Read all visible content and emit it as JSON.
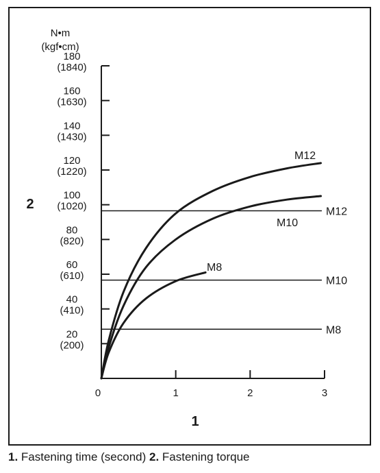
{
  "chart_data": {
    "type": "line",
    "xlabel": "1",
    "ylabel": "2",
    "yunit_top": "N•m",
    "yunit_bottom": "(kgf•cm)",
    "xlim": [
      0,
      3
    ],
    "ylim": [
      0,
      180
    ],
    "x_ticks": [
      {
        "value": 0,
        "label": "0"
      },
      {
        "value": 1,
        "label": "1"
      },
      {
        "value": 2,
        "label": "2"
      },
      {
        "value": 3,
        "label": "3"
      }
    ],
    "y_ticks": [
      {
        "value": 20,
        "label": "20",
        "sublabel": "(200)"
      },
      {
        "value": 40,
        "label": "40",
        "sublabel": "(410)"
      },
      {
        "value": 60,
        "label": "60",
        "sublabel": "(610)"
      },
      {
        "value": 80,
        "label": "80",
        "sublabel": "(820)"
      },
      {
        "value": 100,
        "label": "100",
        "sublabel": "(1020)"
      },
      {
        "value": 120,
        "label": "120",
        "sublabel": "(1220)"
      },
      {
        "value": 140,
        "label": "140",
        "sublabel": "(1430)"
      },
      {
        "value": 160,
        "label": "160",
        "sublabel": "(1630)"
      },
      {
        "value": 180,
        "label": "180",
        "sublabel": "(1840)"
      }
    ],
    "series": [
      {
        "name": "M12",
        "x": [
          0,
          0.1,
          0.3,
          0.6,
          1.0,
          1.5,
          2.0,
          2.5,
          2.95
        ],
        "y": [
          0,
          22,
          50,
          75,
          95,
          108,
          116,
          121,
          124
        ]
      },
      {
        "name": "M10",
        "x": [
          0,
          0.1,
          0.3,
          0.6,
          1.0,
          1.5,
          2.0,
          2.5,
          2.95
        ],
        "y": [
          0,
          18,
          42,
          64,
          80,
          92,
          99,
          103,
          105
        ]
      },
      {
        "name": "M8",
        "x": [
          0,
          0.1,
          0.3,
          0.6,
          1.0,
          1.4
        ],
        "y": [
          0,
          15,
          32,
          46,
          56,
          61
        ]
      }
    ],
    "reference_lines": [
      {
        "name": "M12",
        "y": 96.5
      },
      {
        "name": "M10",
        "y": 56.6
      },
      {
        "name": "M8",
        "y": 28.3
      }
    ]
  },
  "caption": {
    "num1": "1.",
    "text1": " Fastening time (second) ",
    "num2": "2.",
    "text2": " Fastening torque"
  }
}
